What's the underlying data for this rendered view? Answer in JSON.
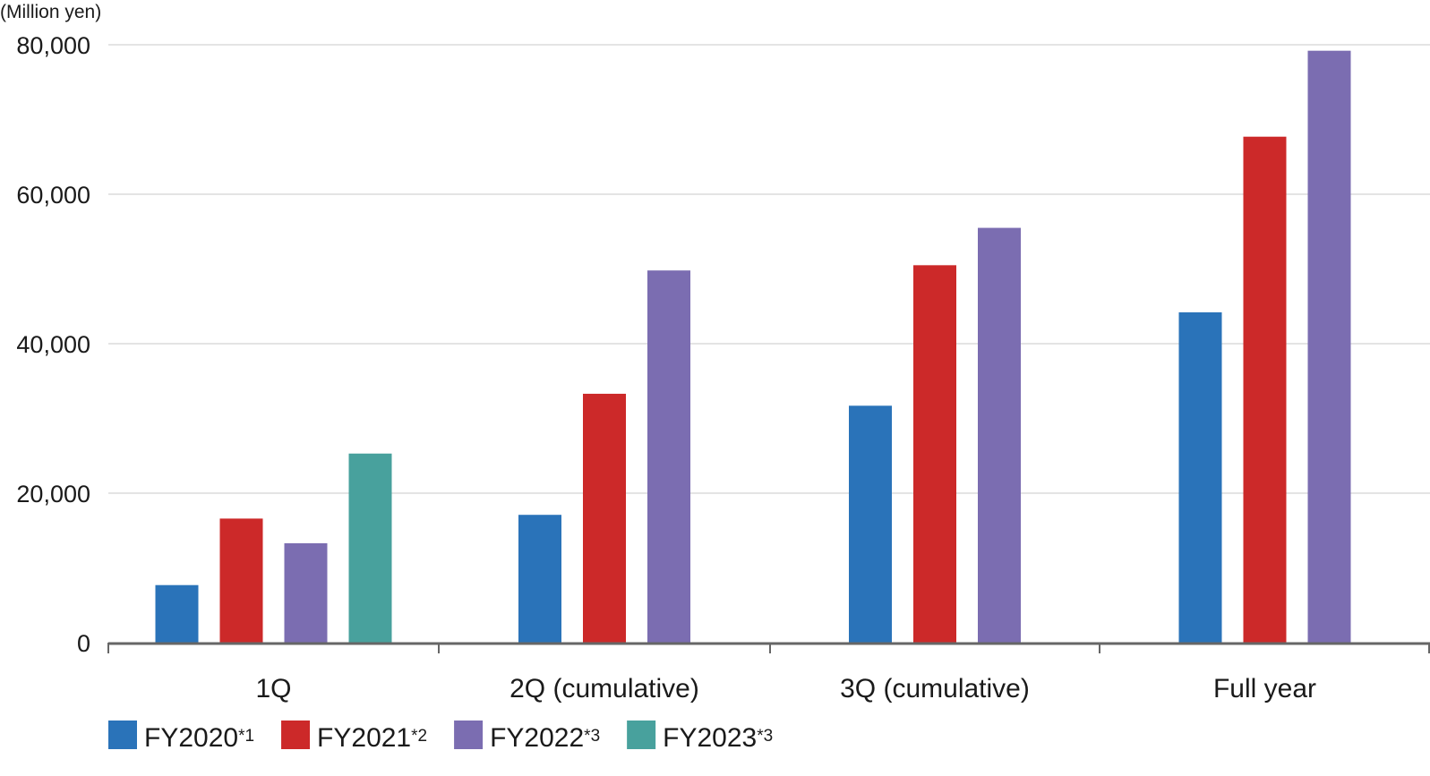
{
  "chart_data": {
    "type": "bar",
    "ylabel": "(Million yen)",
    "ylim": [
      0,
      80000
    ],
    "yticks": [
      0,
      20000,
      40000,
      60000,
      80000
    ],
    "ytick_labels": [
      "0",
      "20,000",
      "40,000",
      "60,000",
      "80,000"
    ],
    "grid": true,
    "legend_position": "bottom-left",
    "categories": [
      "1Q",
      "2Q (cumulative)",
      "3Q (cumulative)",
      "Full year"
    ],
    "series": [
      {
        "name": "FY2020",
        "note": "*1",
        "color": "#2a73b9",
        "values": [
          7700,
          17100,
          31700,
          44200
        ]
      },
      {
        "name": "FY2021",
        "note": "*2",
        "color": "#cc2929",
        "values": [
          16600,
          33300,
          50500,
          67700
        ]
      },
      {
        "name": "FY2022",
        "note": "*3",
        "color": "#7b6db1",
        "values": [
          13300,
          49800,
          55500,
          79200
        ]
      },
      {
        "name": "FY2023",
        "note": "*3",
        "color": "#48a19d",
        "values": [
          25300,
          null,
          null,
          null
        ]
      }
    ]
  }
}
